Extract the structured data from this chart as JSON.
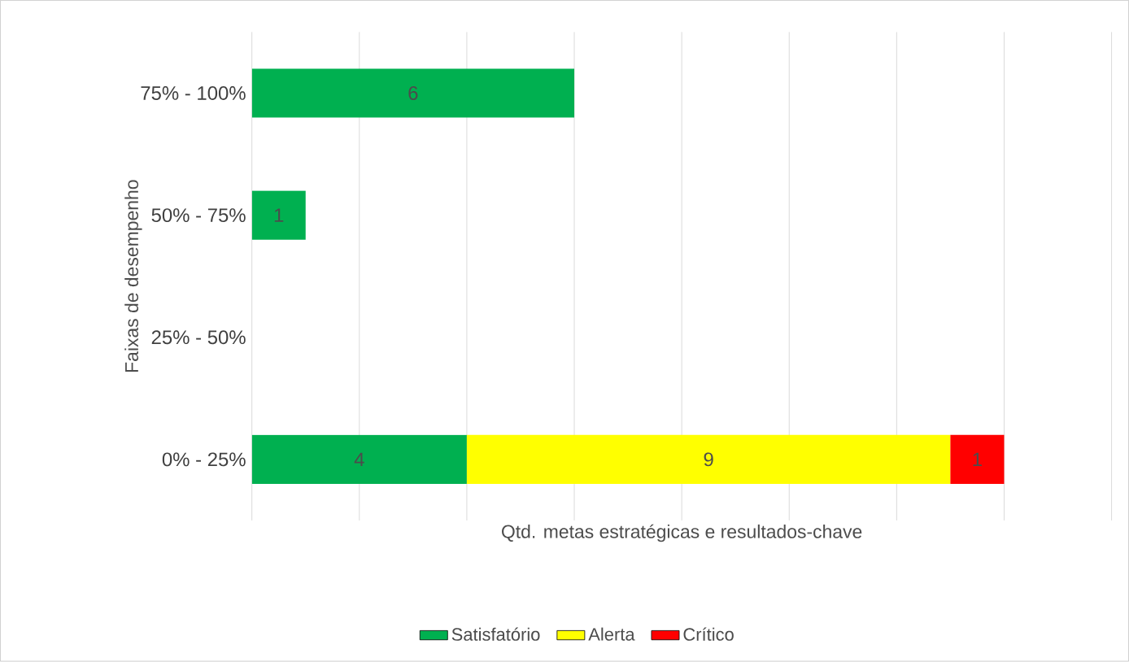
{
  "chart_data": {
    "type": "bar",
    "orientation": "horizontal",
    "stacked": true,
    "categories": [
      "75% - 100%",
      "50% - 75%",
      "25% - 50%",
      "0% - 25%"
    ],
    "series": [
      {
        "name": "Satisfatório",
        "color": "#00b050",
        "values": [
          6,
          1,
          null,
          4
        ]
      },
      {
        "name": "Alerta",
        "color": "#ffff00",
        "values": [
          null,
          null,
          null,
          9
        ]
      },
      {
        "name": "Crítico",
        "color": "#ff0000",
        "values": [
          null,
          null,
          null,
          1
        ]
      }
    ],
    "xlabel": "Qtd. metas estratégicas e resultados-chave",
    "ylabel": "Faixas de desempenho",
    "xlim": [
      0,
      16
    ],
    "xticks": [
      {
        "value": 0,
        "label": null
      },
      {
        "value": 2,
        "label": null
      },
      {
        "value": 4,
        "label": null
      },
      {
        "value": 6,
        "label": null
      },
      {
        "value": 8,
        "label": null
      },
      {
        "value": 10,
        "label": null
      },
      {
        "value": 12,
        "label": null
      },
      {
        "value": 14,
        "label": null
      },
      {
        "value": 16,
        "label": null
      }
    ],
    "tick_labels": "y",
    "grid": "x",
    "legend": "bottom",
    "data_labels": true
  }
}
